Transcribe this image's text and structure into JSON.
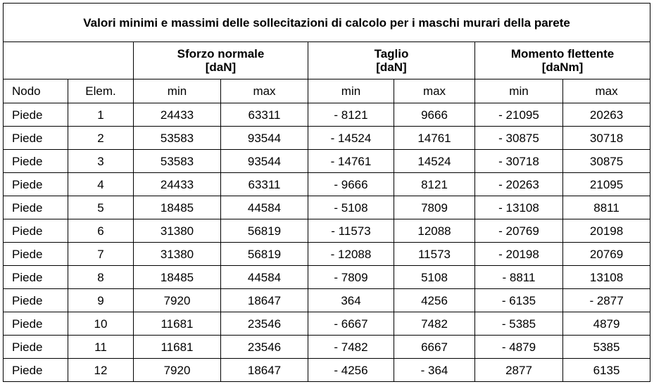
{
  "table": {
    "title": "Valori minimi e massimi delle sollecitazioni di calcolo per i maschi murari della parete",
    "groups": [
      {
        "name": "Sforzo normale",
        "unit": "[daN]"
      },
      {
        "name": "Taglio",
        "unit": "[daN]"
      },
      {
        "name": "Momento flettente",
        "unit": "[daNm]"
      }
    ],
    "sub_headers": [
      "Nodo",
      "Elem.",
      "min",
      "max",
      "min",
      "max",
      "min",
      "max"
    ],
    "rows": [
      [
        "Piede",
        "1",
        "24433",
        "63311",
        "- 8121",
        "9666",
        "- 21095",
        "20263"
      ],
      [
        "Piede",
        "2",
        "53583",
        "93544",
        "- 14524",
        "14761",
        "- 30875",
        "30718"
      ],
      [
        "Piede",
        "3",
        "53583",
        "93544",
        "- 14761",
        "14524",
        "- 30718",
        "30875"
      ],
      [
        "Piede",
        "4",
        "24433",
        "63311",
        "- 9666",
        "8121",
        "- 20263",
        "21095"
      ],
      [
        "Piede",
        "5",
        "18485",
        "44584",
        "- 5108",
        "7809",
        "- 13108",
        "8811"
      ],
      [
        "Piede",
        "6",
        "31380",
        "56819",
        "- 11573",
        "12088",
        "- 20769",
        "20198"
      ],
      [
        "Piede",
        "7",
        "31380",
        "56819",
        "- 12088",
        "11573",
        "- 20198",
        "20769"
      ],
      [
        "Piede",
        "8",
        "18485",
        "44584",
        "- 7809",
        "5108",
        "- 8811",
        "13108"
      ],
      [
        "Piede",
        "9",
        "7920",
        "18647",
        "364",
        "4256",
        "- 6135",
        "- 2877"
      ],
      [
        "Piede",
        "10",
        "11681",
        "23546",
        "- 6667",
        "7482",
        "- 5385",
        "4879"
      ],
      [
        "Piede",
        "11",
        "11681",
        "23546",
        "- 7482",
        "6667",
        "- 4879",
        "5385"
      ],
      [
        "Piede",
        "12",
        "7920",
        "18647",
        "- 4256",
        "- 364",
        "2877",
        "6135"
      ]
    ]
  }
}
